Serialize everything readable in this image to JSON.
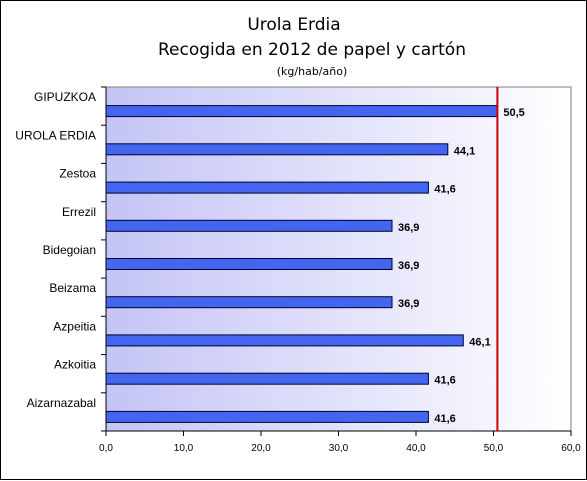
{
  "chart_data": {
    "type": "bar",
    "orientation": "horizontal",
    "title": "Urola Erdia",
    "subtitle": "Recogida en 2012 de papel y cartón",
    "unit_label": "(kg/hab/año)",
    "categories": [
      "GIPUZKOA",
      "UROLA ERDIA",
      "Zestoa",
      "Errezil",
      "Bidegoian",
      "Beizama",
      "Azpeitia",
      "Azkoitia",
      "Aizarnazabal"
    ],
    "values": [
      50.5,
      44.1,
      41.6,
      36.9,
      36.9,
      36.9,
      46.1,
      41.6,
      41.6
    ],
    "value_labels": [
      "50,5",
      "44,1",
      "41,6",
      "36,9",
      "36,9",
      "36,9",
      "46,1",
      "41,6",
      "41,6"
    ],
    "xlim": [
      0,
      60
    ],
    "x_ticks": [
      "0,0",
      "10,0",
      "20,0",
      "30,0",
      "40,0",
      "50,0",
      "60,0"
    ],
    "reference_line": {
      "value": 50.5,
      "color": "#cc0000"
    },
    "grid": false,
    "colors": {
      "bar": "#4466ee",
      "bar_border": "#000033",
      "plot_gradient_left": "#c4c4f6",
      "plot_gradient_right": "#ffffff"
    }
  }
}
